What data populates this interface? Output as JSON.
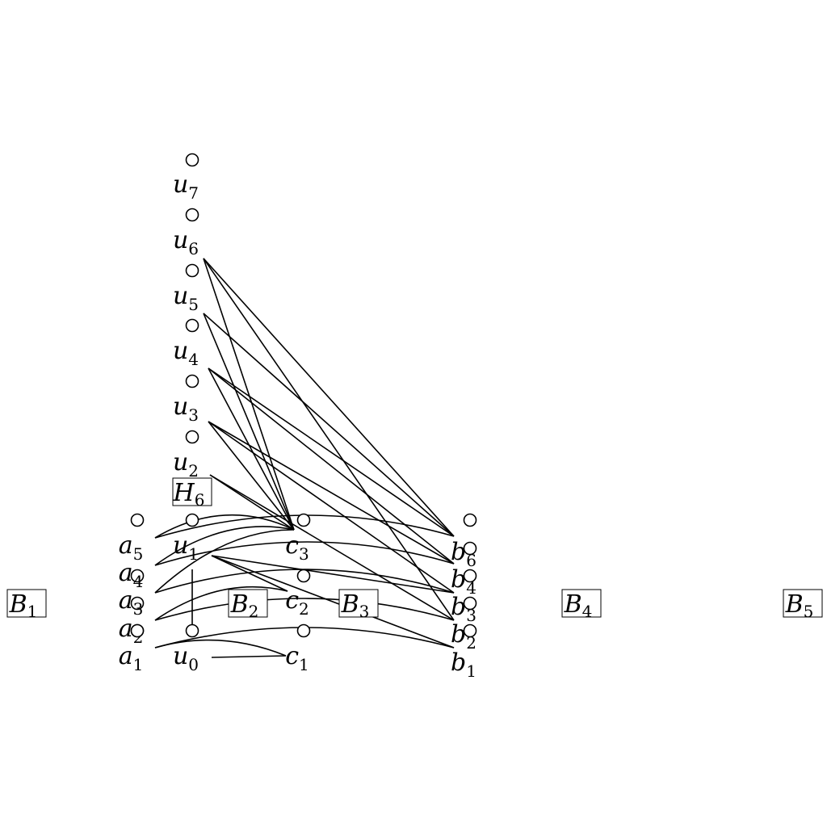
{
  "boxes": [
    {
      "id": "B1",
      "base": "B",
      "sub": "1"
    },
    {
      "id": "B2",
      "base": "B",
      "sub": "2"
    },
    {
      "id": "B3",
      "base": "B",
      "sub": "3"
    },
    {
      "id": "B4",
      "base": "B",
      "sub": "4"
    },
    {
      "id": "B5",
      "base": "B",
      "sub": "5"
    },
    {
      "id": "H6",
      "base": "H",
      "sub": "6"
    }
  ],
  "nodes": [
    {
      "id": "u7",
      "base": "u",
      "sub": "7"
    },
    {
      "id": "u6",
      "base": "u",
      "sub": "6"
    },
    {
      "id": "u5",
      "base": "u",
      "sub": "5"
    },
    {
      "id": "u4",
      "base": "u",
      "sub": "4"
    },
    {
      "id": "u3",
      "base": "u",
      "sub": "3"
    },
    {
      "id": "u2",
      "base": "u",
      "sub": "2"
    },
    {
      "id": "u1",
      "base": "u",
      "sub": "1"
    },
    {
      "id": "u0",
      "base": "u",
      "sub": "0"
    },
    {
      "id": "a5",
      "base": "a",
      "sub": "5"
    },
    {
      "id": "a4",
      "base": "a",
      "sub": "4"
    },
    {
      "id": "a3",
      "base": "a",
      "sub": "3"
    },
    {
      "id": "a2",
      "base": "a",
      "sub": "2"
    },
    {
      "id": "a1",
      "base": "a",
      "sub": "1"
    },
    {
      "id": "c3",
      "base": "c",
      "sub": "3"
    },
    {
      "id": "c2",
      "base": "c",
      "sub": "2"
    },
    {
      "id": "c1",
      "base": "c",
      "sub": "1"
    },
    {
      "id": "b6",
      "base": "b",
      "sub": "6"
    },
    {
      "id": "b4",
      "base": "b",
      "sub": "4"
    },
    {
      "id": "b3",
      "base": "b",
      "sub": "3"
    },
    {
      "id": "b2",
      "base": "b",
      "sub": "2"
    },
    {
      "id": "b1",
      "base": "b",
      "sub": "1"
    }
  ],
  "edges": [
    {
      "from": "u0",
      "to": "u1"
    },
    {
      "from": "u0",
      "to": "c1"
    },
    {
      "from": "u1",
      "to": "c2"
    },
    {
      "from": "u1",
      "to": "b3"
    },
    {
      "from": "u1",
      "to": "b1"
    },
    {
      "from": "u2",
      "to": "c3"
    },
    {
      "from": "u2",
      "to": "b2"
    },
    {
      "from": "u3",
      "to": "c3"
    },
    {
      "from": "u3",
      "to": "b4"
    },
    {
      "from": "u3",
      "to": "b3"
    },
    {
      "from": "u4",
      "to": "c3"
    },
    {
      "from": "u4",
      "to": "b6"
    },
    {
      "from": "u4",
      "to": "b4"
    },
    {
      "from": "u5",
      "to": "c3"
    },
    {
      "from": "u5",
      "to": "b6"
    },
    {
      "from": "u6",
      "to": "c3"
    },
    {
      "from": "u6",
      "to": "b6"
    },
    {
      "from": "u6",
      "to": "b2"
    },
    {
      "from": "a5",
      "to": "c3"
    },
    {
      "from": "a5",
      "to": "b6"
    },
    {
      "from": "a4",
      "to": "c3"
    },
    {
      "from": "a4",
      "to": "b4"
    },
    {
      "from": "a3",
      "to": "c3"
    },
    {
      "from": "a3",
      "to": "b3"
    },
    {
      "from": "a2",
      "to": "c2"
    },
    {
      "from": "a2",
      "to": "b2"
    },
    {
      "from": "a1",
      "to": "c1"
    },
    {
      "from": "a1",
      "to": "b1"
    }
  ]
}
